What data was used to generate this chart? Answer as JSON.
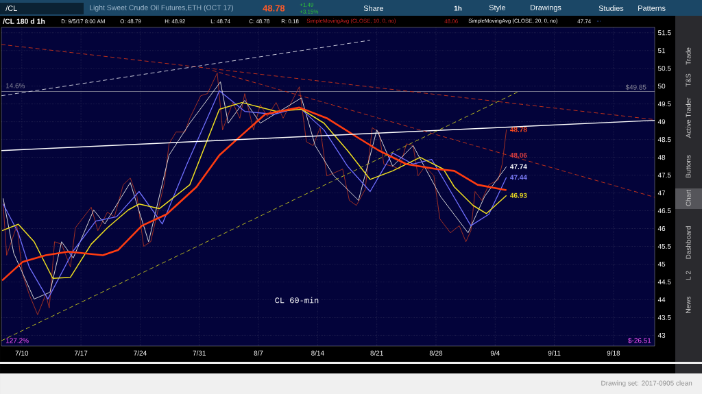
{
  "chart_data": {
    "type": "line",
    "title": "Light Sweet Crude Oil Futures,ETH (OCT 17)",
    "subtitle": "/CL 180 d 1h",
    "xlim": [
      "2017-07-07T14:00",
      "2017-09-22T21:00"
    ],
    "xticks": [
      {
        "value": "2017-07-10",
        "label": "7/10"
      },
      {
        "value": "2017-07-17",
        "label": "7/17"
      },
      {
        "value": "2017-07-24",
        "label": "7/24"
      },
      {
        "value": "2017-07-31",
        "label": "7/31"
      },
      {
        "value": "2017-08-07",
        "label": "8/7"
      },
      {
        "value": "2017-08-14",
        "label": "8/14"
      },
      {
        "value": "2017-08-21",
        "label": "8/21"
      },
      {
        "value": "2017-08-28",
        "label": "8/28"
      },
      {
        "value": "2017-09-04",
        "label": "9/4"
      },
      {
        "value": "2017-09-11",
        "label": "9/11"
      },
      {
        "value": "2017-09-18",
        "label": "9/18"
      }
    ],
    "ylim": [
      42.7,
      51.65
    ],
    "yticks": [
      43,
      43.5,
      44,
      44.5,
      45,
      45.5,
      46,
      46.5,
      47,
      47.5,
      48,
      48.5,
      49,
      49.5,
      50,
      50.5,
      51,
      51.5
    ],
    "grid": true,
    "series": [
      {
        "color": "#e0401a",
        "x": [
          "2017-07-07T19:00",
          "2017-07-08T05:00",
          "2017-07-09T10:00",
          "2017-07-10T02:00",
          "2017-07-10T21:00",
          "2017-07-11T21:00",
          "2017-07-12T20:00",
          "2017-07-13T06:00",
          "2017-07-13T21:00",
          "2017-07-14T17:00",
          "2017-07-15T18:00",
          "2017-07-16T08:00",
          "2017-07-18T05:00",
          "2017-07-19T00:00",
          "2017-07-20T03:00",
          "2017-07-20T23:00",
          "2017-07-22T00:00",
          "2017-07-22T20:00",
          "2017-07-23T15:00",
          "2017-07-24T10:00",
          "2017-07-25T06:00",
          "2017-07-26T21:00",
          "2017-07-27T10:00",
          "2017-07-28T06:00",
          "2017-07-29T07:00",
          "2017-07-29T21:00",
          "2017-07-31T04:00",
          "2017-07-31T23:00",
          "2017-08-02T03:00",
          "2017-08-02T18:00",
          "2017-08-03T23:00",
          "2017-08-04T19:00",
          "2017-08-05T09:00",
          "2017-08-06T10:00",
          "2017-08-07T05:00",
          "2017-08-08T01:00",
          "2017-08-09T02:00",
          "2017-08-09T22:00",
          "2017-08-11T20:00",
          "2017-08-12T16:00",
          "2017-08-13T11:00",
          "2017-08-14T07:00",
          "2017-08-15T02:00",
          "2017-08-15T22:00",
          "2017-08-16T23:00",
          "2017-08-17T18:00",
          "2017-08-18T14:00",
          "2017-08-19T15:00",
          "2017-08-20T11:00",
          "2017-08-21T06:00",
          "2017-08-21T20:00",
          "2017-08-22T21:00",
          "2017-08-23T16:00",
          "2017-08-24T12:00",
          "2017-08-25T07:00",
          "2017-08-25T21:00",
          "2017-08-26T17:00",
          "2017-08-27T18:00",
          "2017-08-28T11:00",
          "2017-08-29T17:00",
          "2017-08-30T18:00",
          "2017-08-31T13:00",
          "2017-09-01T03:00",
          "2017-09-01T15:00",
          "2017-09-02T10:00",
          "2017-09-03T06:00",
          "2017-09-04T09:00",
          "2017-09-04T20:00",
          "2017-09-05T08:00"
        ],
        "values": [
          46.71,
          45.25,
          46.08,
          44.73,
          44.15,
          43.58,
          44.15,
          43.77,
          45.63,
          45.56,
          44.92,
          46.02,
          46.6,
          45.94,
          46.46,
          46.33,
          47.23,
          47.42,
          46.9,
          45.5,
          45.63,
          47.29,
          48.38,
          48.71,
          48.71,
          49.1,
          49.73,
          49.79,
          50.37,
          48.77,
          49.54,
          49.1,
          49.79,
          48.77,
          49.48,
          49.15,
          49.54,
          49.1,
          49.98,
          48.44,
          48.33,
          48.83,
          47.48,
          47.56,
          47.67,
          46.79,
          46.65,
          47.1,
          48.83,
          48.71,
          47.81,
          47.75,
          47.67,
          48.38,
          48.33,
          47.48,
          47.75,
          47.48,
          46.27,
          45.88,
          46.08,
          45.63,
          45.94,
          47.04,
          46.79,
          47.23,
          47.37,
          47.81,
          48.78
        ]
      },
      {
        "color": "#d8d8d8",
        "x": [
          "2017-07-07T19:00",
          "2017-07-09T01:00",
          "2017-07-11T11:00",
          "2017-07-13T08:00",
          "2017-07-14T17:00",
          "2017-07-16T02:00",
          "2017-07-18T12:00",
          "2017-07-19T20:00",
          "2017-07-22T20:00",
          "2017-07-25T00:00",
          "2017-07-27T10:00",
          "2017-07-29T21:00",
          "2017-08-01T07:00",
          "2017-08-02T12:00",
          "2017-08-03T10:00",
          "2017-08-05T09:00",
          "2017-08-07T05:00",
          "2017-08-12T02:00",
          "2017-08-13T17:00",
          "2017-08-15T22:00",
          "2017-08-18T20:00",
          "2017-08-21T00:00",
          "2017-08-22T21:00",
          "2017-08-25T07:00",
          "2017-08-28T13:00",
          "2017-08-31T19:00",
          "2017-09-02T18:00",
          "2017-09-05T08:00"
        ],
        "values": [
          46.85,
          45.31,
          44.02,
          44.21,
          45.63,
          45.17,
          46.52,
          46.13,
          47.29,
          45.63,
          48.06,
          48.96,
          49.73,
          50.12,
          48.96,
          49.6,
          48.96,
          49.67,
          48.33,
          47.48,
          46.79,
          48.77,
          47.75,
          48.33,
          46.9,
          45.88,
          46.9,
          47.74
        ]
      },
      {
        "color": "#7070ff",
        "x": [
          "2017-07-07T19:00",
          "2017-07-09T14:00",
          "2017-07-10T21:00",
          "2017-07-13T02:00",
          "2017-07-16T02:00",
          "2017-07-18T18:00",
          "2017-07-21T05:00",
          "2017-07-23T21:00",
          "2017-07-26T15:00",
          "2017-07-29T13:00",
          "2017-08-02T09:00",
          "2017-08-05T09:00",
          "2017-08-08T20:00",
          "2017-08-11T20:00",
          "2017-08-14T18:00",
          "2017-08-17T13:00",
          "2017-08-20T05:00",
          "2017-08-22T21:00",
          "2017-08-25T07:00",
          "2017-08-27T12:00",
          "2017-08-29T03:00",
          "2017-09-01T03:00",
          "2017-09-03T06:00",
          "2017-09-05T08:00"
        ],
        "values": [
          46.69,
          45.88,
          44.92,
          44.02,
          45.37,
          46.21,
          46.33,
          47.04,
          46.13,
          47.81,
          49.87,
          49.29,
          49.21,
          49.4,
          48.77,
          47.75,
          47.04,
          48.12,
          47.81,
          47.94,
          47.29,
          46.08,
          46.4,
          47.44
        ]
      },
      {
        "color": "#f0e020",
        "x": [
          "2017-07-07T16:00",
          "2017-07-09T14:00",
          "2017-07-11T11:00",
          "2017-07-13T16:00",
          "2017-07-15T18:00",
          "2017-07-18T05:00",
          "2017-07-20T03:00",
          "2017-07-22T14:00",
          "2017-07-23T21:00",
          "2017-07-26T07:00",
          "2017-07-29T21:00",
          "2017-08-02T09:00",
          "2017-08-05T01:00",
          "2017-08-09T02:00",
          "2017-08-12T02:00",
          "2017-08-14T18:00",
          "2017-08-17T13:00",
          "2017-08-20T05:00",
          "2017-08-22T21:00",
          "2017-08-26T03:00",
          "2017-08-28T21:00",
          "2017-08-30T04:00",
          "2017-09-01T09:00",
          "2017-09-02T23:00",
          "2017-09-05T08:00"
        ],
        "values": [
          45.94,
          46.12,
          45.63,
          44.6,
          44.63,
          45.56,
          46.02,
          46.52,
          46.69,
          46.56,
          47.23,
          49.35,
          49.54,
          49.29,
          49.35,
          48.96,
          48.19,
          47.38,
          47.62,
          48.0,
          47.67,
          47.17,
          46.65,
          46.42,
          46.93
        ]
      },
      {
        "color": "#ff3c10",
        "x": [
          "2017-07-07T16:00",
          "2017-07-10T02:00",
          "2017-07-12T20:00",
          "2017-07-15T12:00",
          "2017-07-19T14:00",
          "2017-07-21T10:00",
          "2017-07-24T05:00",
          "2017-07-27T03:00",
          "2017-07-30T16:00",
          "2017-08-02T09:00",
          "2017-08-05T01:00",
          "2017-08-07T19:00",
          "2017-08-11T20:00",
          "2017-08-15T02:00",
          "2017-08-18T14:00",
          "2017-08-21T06:00",
          "2017-08-24T12:00",
          "2017-08-28T02:00",
          "2017-08-30T04:00",
          "2017-09-01T22:00",
          "2017-09-05T08:00"
        ],
        "values": [
          44.54,
          45.06,
          45.25,
          45.35,
          45.25,
          45.4,
          46.08,
          46.4,
          47.17,
          48.06,
          48.63,
          49.21,
          49.4,
          49.1,
          48.58,
          48.19,
          47.81,
          47.67,
          47.62,
          47.23,
          47.08
        ]
      },
      {
        "color": "#ffffff",
        "x": [
          "2017-07-07T14:00",
          "2017-09-22T21:00"
        ],
        "values": [
          48.19,
          49.04
        ]
      },
      {
        "color": "#c0301a",
        "line_style": "dashed",
        "x": [
          "2017-07-07T14:00",
          "2017-09-22T21:00"
        ],
        "values": [
          51.17,
          49.06
        ]
      },
      {
        "color": "#c0301a",
        "line_style": "dashed",
        "x": [
          "2017-08-01T13:00",
          "2017-09-22T21:00"
        ],
        "values": [
          50.44,
          46.88
        ]
      },
      {
        "color": "#c8c8d8",
        "line_style": "dashed",
        "x": [
          "2017-07-07T14:00",
          "2017-08-20T05:00"
        ],
        "values": [
          49.73,
          51.29
        ]
      },
      {
        "color": "#b8b820",
        "line_style": "dashed",
        "x": [
          "2017-07-07T14:00",
          "2017-09-06T15:00"
        ],
        "values": [
          42.85,
          49.83
        ]
      }
    ],
    "ref_lines": [
      {
        "axis": "y",
        "value": 49.85,
        "label": "$49.85",
        "color": "#8a8a9a"
      }
    ],
    "annotations": [
      "/CL",
      "48.78",
      "+1.49",
      "+3.15%",
      "Share",
      "1h",
      "Style",
      "Drawings",
      "Studies",
      "Patterns",
      "D: 9/5/17 8:00 AM",
      "O: 48.79",
      "H: 48.92",
      "L: 48.74",
      "C: 48.78",
      "R: 0.18",
      "SimpleMovingAvg (CLOSE, 10, 0, no)",
      "48.06",
      "SimpleMovingAvg (CLOSE, 20, 0, no)",
      "47.74",
      "...",
      "14.6%",
      "127.2%",
      "$-26.51",
      "CL 60-min",
      "Drawing set: 2017-0905 clean",
      "Trade",
      "T&S",
      "Active Trader",
      "Buttons",
      "Chart",
      "Dashboard",
      "L 2",
      "News",
      {
        "text": "48.78",
        "x": "2017-09-05T08:00",
        "y": 48.78
      },
      {
        "text": "48.06",
        "x": "2017-09-05T08:00",
        "y": 48.06
      },
      {
        "text": "47.74",
        "x": "2017-09-05T08:00",
        "y": 47.74
      },
      {
        "text": "47.44",
        "x": "2017-09-05T08:00",
        "y": 47.44
      },
      {
        "text": "46.93",
        "x": "2017-09-05T08:00",
        "y": 46.93
      }
    ]
  }
}
